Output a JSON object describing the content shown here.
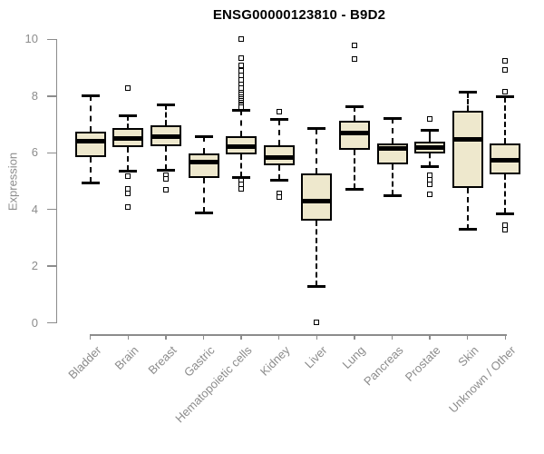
{
  "title": "ENSG00000123810 - B9D2",
  "ylabel": "Expression",
  "style": {
    "box_fill": "#EEE8CD",
    "box_border": "#000000",
    "median_color": "#000000",
    "axis_color": "#8C8C8C",
    "label_color": "#8C8C8C",
    "title_color": "#000000",
    "background": "#FFFFFF"
  },
  "chart_data": {
    "type": "boxplot",
    "title": "ENSG00000123810 - B9D2",
    "xlabel": "",
    "ylabel": "Expression",
    "ylim": [
      0,
      10
    ],
    "yticks": [
      0,
      2,
      4,
      6,
      8,
      10
    ],
    "grid": false,
    "legend": false,
    "categories": [
      "Bladder",
      "Brain",
      "Breast",
      "Gastric",
      "Hematopoietic cells",
      "Kidney",
      "Liver",
      "Lung",
      "Pancreas",
      "Prostate",
      "Skin",
      "Unknown / Other"
    ],
    "series": [
      {
        "name": "Bladder",
        "whisker_low": 4.95,
        "q1": 5.84,
        "median": 6.4,
        "q3": 6.74,
        "whisker_high": 8.02,
        "outliers": []
      },
      {
        "name": "Brain",
        "whisker_low": 5.36,
        "q1": 6.21,
        "median": 6.49,
        "q3": 6.88,
        "whisker_high": 7.3,
        "outliers": [
          8.27,
          5.18,
          4.72,
          4.56,
          4.1
        ]
      },
      {
        "name": "Breast",
        "whisker_low": 5.39,
        "q1": 6.23,
        "median": 6.57,
        "q3": 6.96,
        "whisker_high": 7.7,
        "outliers": [
          5.2,
          5.07,
          4.69
        ]
      },
      {
        "name": "Gastric",
        "whisker_low": 3.88,
        "q1": 5.11,
        "median": 5.68,
        "q3": 5.98,
        "whisker_high": 6.58,
        "outliers": []
      },
      {
        "name": "Hematopoietic cells",
        "whisker_low": 5.14,
        "q1": 5.94,
        "median": 6.21,
        "q3": 6.58,
        "whisker_high": 7.51,
        "outliers": [
          10.02,
          9.34,
          9.09,
          8.88,
          8.72,
          8.56,
          8.4,
          8.27,
          8.13,
          8.05,
          7.97,
          7.9,
          7.84,
          7.78,
          7.72,
          7.66,
          7.6,
          5.01,
          4.88,
          4.74
        ]
      },
      {
        "name": "Kidney",
        "whisker_low": 5.04,
        "q1": 5.57,
        "median": 5.84,
        "q3": 6.26,
        "whisker_high": 7.17,
        "outliers": [
          7.44,
          4.57,
          4.44
        ]
      },
      {
        "name": "Liver",
        "whisker_low": 1.3,
        "q1": 3.6,
        "median": 4.29,
        "q3": 5.27,
        "whisker_high": 6.85,
        "outliers": [
          0.02
        ]
      },
      {
        "name": "Lung",
        "whisker_low": 4.72,
        "q1": 6.1,
        "median": 6.69,
        "q3": 7.12,
        "whisker_high": 7.63,
        "outliers": [
          9.79,
          9.3
        ]
      },
      {
        "name": "Pancreas",
        "whisker_low": 4.5,
        "q1": 5.59,
        "median": 6.16,
        "q3": 6.34,
        "whisker_high": 7.22,
        "outliers": []
      },
      {
        "name": "Prostate",
        "whisker_low": 5.52,
        "q1": 5.97,
        "median": 6.2,
        "q3": 6.39,
        "whisker_high": 6.78,
        "outliers": [
          7.2,
          5.21,
          5.05,
          4.89,
          4.53
        ]
      },
      {
        "name": "Skin",
        "whisker_low": 3.3,
        "q1": 4.77,
        "median": 6.46,
        "q3": 7.49,
        "whisker_high": 8.13,
        "outliers": []
      },
      {
        "name": "Unknown / Other",
        "whisker_low": 3.86,
        "q1": 5.25,
        "median": 5.73,
        "q3": 6.32,
        "whisker_high": 7.97,
        "outliers": [
          9.25,
          8.93,
          8.16,
          3.45,
          3.29
        ]
      }
    ]
  }
}
